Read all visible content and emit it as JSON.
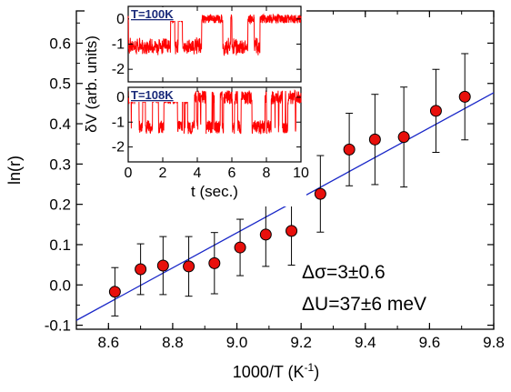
{
  "chart_data": [
    {
      "type": "scatter",
      "xlabel": "1000/T (K",
      "xlabel_sup": "-1",
      "xlabel_close": ")",
      "ylabel": "ln(r)",
      "xlim": [
        8.5,
        9.8
      ],
      "ylim": [
        -0.11,
        0.68
      ],
      "xticks": [
        "8.6",
        "8.8",
        "9.0",
        "9.2",
        "9.4",
        "9.6",
        "9.8"
      ],
      "yticks": [
        "-0.1",
        "0.0",
        "0.1",
        "0.2",
        "0.3",
        "0.4",
        "0.5",
        "0.6"
      ],
      "marker_color": "#e8100c",
      "fit_color": "#1a28c8",
      "grid": false,
      "points": [
        {
          "x": 8.62,
          "y": -0.017,
          "err": 0.06
        },
        {
          "x": 8.7,
          "y": 0.039,
          "err": 0.063
        },
        {
          "x": 8.77,
          "y": 0.048,
          "err": 0.072
        },
        {
          "x": 8.85,
          "y": 0.046,
          "err": 0.074
        },
        {
          "x": 8.93,
          "y": 0.054,
          "err": 0.076
        },
        {
          "x": 9.01,
          "y": 0.093,
          "err": 0.07
        },
        {
          "x": 9.09,
          "y": 0.125,
          "err": 0.079
        },
        {
          "x": 9.17,
          "y": 0.134,
          "err": 0.085
        },
        {
          "x": 9.26,
          "y": 0.226,
          "err": 0.095
        },
        {
          "x": 9.35,
          "y": 0.336,
          "err": 0.09
        },
        {
          "x": 9.43,
          "y": 0.361,
          "err": 0.112
        },
        {
          "x": 9.52,
          "y": 0.367,
          "err": 0.124
        },
        {
          "x": 9.62,
          "y": 0.432,
          "err": 0.103
        },
        {
          "x": 9.71,
          "y": 0.467,
          "err": 0.107
        }
      ],
      "fit_line": {
        "x": [
          8.5,
          9.8
        ],
        "y": [
          -0.088,
          0.477
        ]
      },
      "annotations": [
        "Δσ=3±0.6",
        "ΔU=37±6 meV"
      ]
    },
    {
      "type": "line",
      "xlabel": "t (sec.)",
      "ylabel": "δV (arb. units)",
      "xlim": [
        0,
        10
      ],
      "xticks": [
        "0",
        "2",
        "4",
        "6",
        "8",
        "10"
      ],
      "trace_color": "#ff0000",
      "panels": [
        {
          "label": "T=100K",
          "ylim": [
            -2.5,
            0.5
          ],
          "yticks": [
            "0",
            "-1",
            "-2"
          ],
          "levels": [
            0.0,
            -1.3
          ]
        },
        {
          "label": "T=108K",
          "ylim": [
            -2.6,
            0.4
          ],
          "yticks": [
            "0",
            "-1",
            "-2"
          ],
          "levels": [
            0.0,
            -1.2
          ]
        }
      ]
    }
  ]
}
